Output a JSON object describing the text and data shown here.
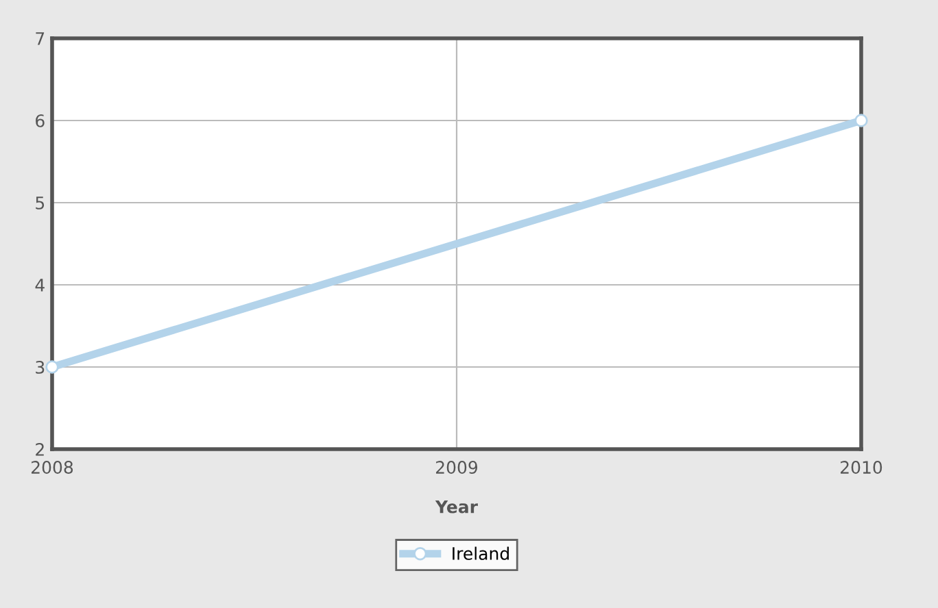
{
  "chart_data": {
    "type": "line",
    "xlabel": "Year",
    "x": [
      2008,
      2010
    ],
    "series": [
      {
        "name": "Ireland",
        "color": "#b3d3ea",
        "values": [
          3,
          6
        ]
      }
    ],
    "xlim": [
      2008,
      2010
    ],
    "xticks": [
      2008,
      2009,
      2010
    ],
    "ylim": [
      2,
      7
    ],
    "yticks": [
      2,
      3,
      4,
      5,
      6,
      7
    ],
    "grid": true,
    "legend": "bottom",
    "marker": "circle",
    "line_style": "solid"
  }
}
